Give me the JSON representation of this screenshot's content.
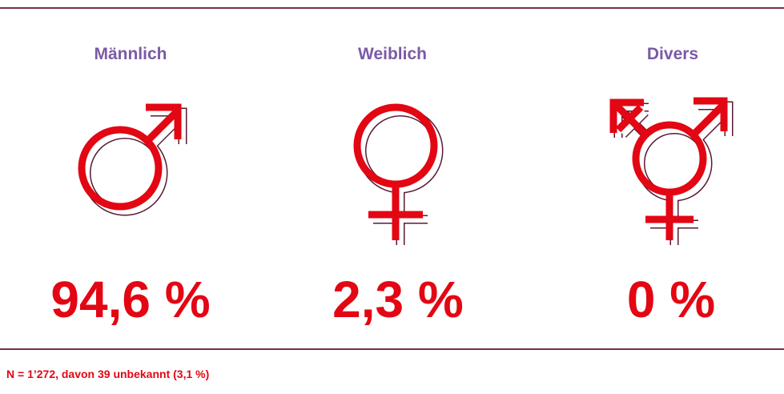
{
  "items": [
    {
      "label": "Männlich",
      "value": "94,6 %"
    },
    {
      "label": "Weiblich",
      "value": "2,3 %"
    },
    {
      "label": "Divers",
      "value": "0 %"
    }
  ],
  "footnote": "N = 1’272, davon 39 unbekannt (3,1 %)"
}
